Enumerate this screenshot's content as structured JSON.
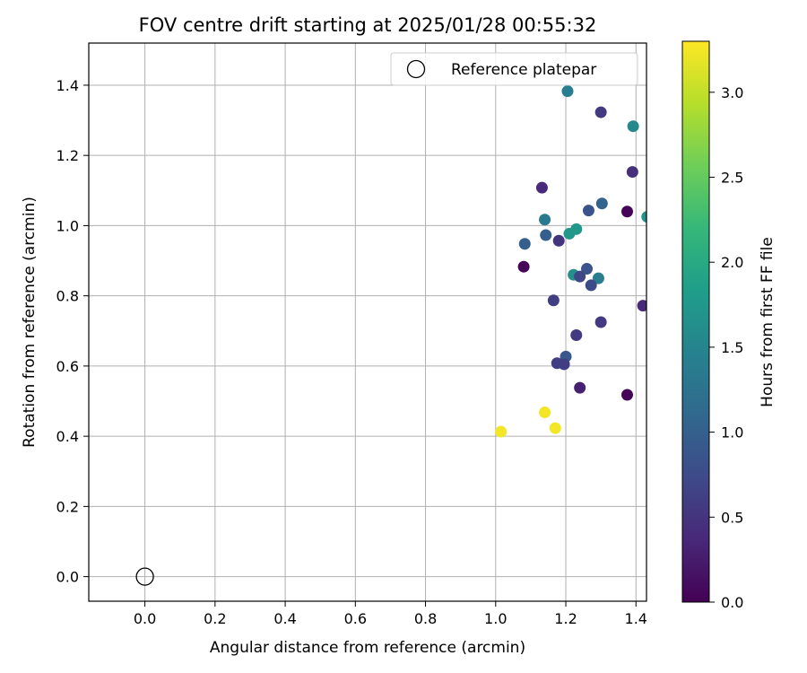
{
  "chart_data": {
    "type": "scatter",
    "title": "FOV centre drift starting at 2025/01/28 00:55:32",
    "xlabel": "Angular distance from reference (arcmin)",
    "ylabel": "Rotation from reference (arcmin)",
    "xlim": [
      -0.16,
      1.43
    ],
    "ylim": [
      -0.07,
      1.52
    ],
    "xticks": [
      0.0,
      0.2,
      0.4,
      0.6,
      0.8,
      1.0,
      1.2,
      1.4
    ],
    "yticks": [
      0.0,
      0.2,
      0.4,
      0.6,
      0.8,
      1.0,
      1.2,
      1.4
    ],
    "grid": true,
    "legend": {
      "placement": "top-right",
      "entries": [
        "Reference platepar"
      ]
    },
    "reference_point": {
      "x": 0.0,
      "y": 0.0,
      "label": "Reference platepar"
    },
    "colorbar": {
      "label": "Hours from first FF file",
      "colormap": "viridis",
      "range": [
        0.0,
        3.3
      ],
      "ticks": [
        0.0,
        0.5,
        1.0,
        1.5,
        2.0,
        2.5,
        3.0
      ]
    },
    "points": [
      {
        "x": 1.205,
        "y": 1.383,
        "hours": 1.4
      },
      {
        "x": 1.3,
        "y": 1.323,
        "hours": 0.55
      },
      {
        "x": 1.392,
        "y": 1.283,
        "hours": 1.55
      },
      {
        "x": 1.39,
        "y": 1.153,
        "hours": 0.45
      },
      {
        "x": 1.132,
        "y": 1.108,
        "hours": 0.4
      },
      {
        "x": 1.303,
        "y": 1.063,
        "hours": 1.05
      },
      {
        "x": 1.265,
        "y": 1.043,
        "hours": 0.85
      },
      {
        "x": 1.375,
        "y": 1.04,
        "hours": 0.05
      },
      {
        "x": 1.432,
        "y": 1.025,
        "hours": 1.7
      },
      {
        "x": 1.14,
        "y": 1.017,
        "hours": 1.35
      },
      {
        "x": 1.23,
        "y": 0.99,
        "hours": 1.75
      },
      {
        "x": 1.21,
        "y": 0.977,
        "hours": 1.75
      },
      {
        "x": 1.143,
        "y": 0.973,
        "hours": 1.0
      },
      {
        "x": 1.18,
        "y": 0.957,
        "hours": 0.5
      },
      {
        "x": 1.083,
        "y": 0.948,
        "hours": 1.0
      },
      {
        "x": 1.08,
        "y": 0.883,
        "hours": 0.05
      },
      {
        "x": 1.26,
        "y": 0.877,
        "hours": 0.85
      },
      {
        "x": 1.222,
        "y": 0.86,
        "hours": 1.65
      },
      {
        "x": 1.24,
        "y": 0.855,
        "hours": 0.7
      },
      {
        "x": 1.293,
        "y": 0.85,
        "hours": 1.4
      },
      {
        "x": 1.272,
        "y": 0.83,
        "hours": 0.75
      },
      {
        "x": 1.165,
        "y": 0.787,
        "hours": 0.6
      },
      {
        "x": 1.42,
        "y": 0.772,
        "hours": 0.4
      },
      {
        "x": 1.3,
        "y": 0.725,
        "hours": 0.55
      },
      {
        "x": 1.23,
        "y": 0.688,
        "hours": 0.55
      },
      {
        "x": 1.2,
        "y": 0.627,
        "hours": 0.9
      },
      {
        "x": 1.175,
        "y": 0.608,
        "hours": 0.6
      },
      {
        "x": 1.195,
        "y": 0.605,
        "hours": 0.6
      },
      {
        "x": 1.24,
        "y": 0.538,
        "hours": 0.3
      },
      {
        "x": 1.375,
        "y": 0.518,
        "hours": 0.05
      },
      {
        "x": 1.14,
        "y": 0.468,
        "hours": 3.25
      },
      {
        "x": 1.17,
        "y": 0.423,
        "hours": 3.25
      },
      {
        "x": 1.015,
        "y": 0.413,
        "hours": 3.25
      }
    ]
  }
}
